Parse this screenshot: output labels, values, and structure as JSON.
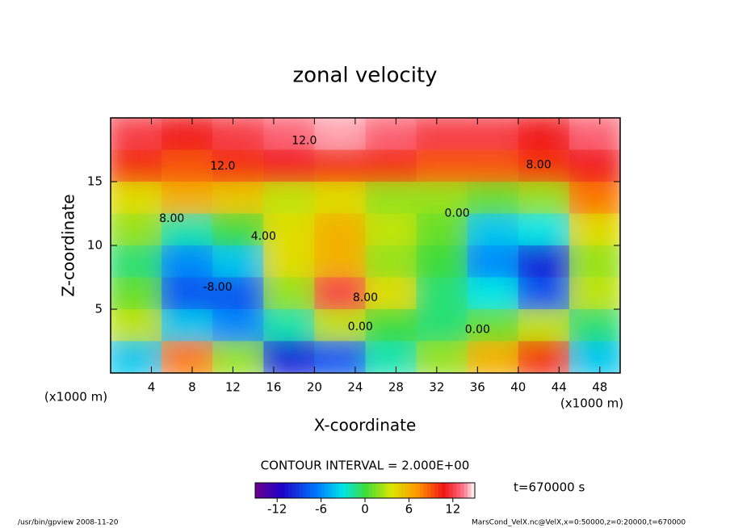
{
  "chart_data": {
    "type": "heatmap",
    "title": "zonal velocity",
    "x_label": "X-coordinate",
    "y_label": "Z-coordinate",
    "x_unit": "(x1000 m)",
    "y_unit": "(x1000 m)",
    "xlim": [
      0,
      50
    ],
    "ylim": [
      0,
      20
    ],
    "xticks": [
      4,
      8,
      12,
      16,
      20,
      24,
      28,
      32,
      36,
      40,
      44,
      48
    ],
    "yticks": [
      5,
      10,
      15
    ],
    "x": [
      2.5,
      7.5,
      12.5,
      17.5,
      22.5,
      27.5,
      32.5,
      37.5,
      42.5,
      47.5
    ],
    "y": [
      1.25,
      3.75,
      6.25,
      8.75,
      11.25,
      13.75,
      16.25,
      18.75
    ],
    "z": [
      [
        -4,
        8,
        2,
        -10,
        -8,
        -2,
        2,
        6,
        10,
        -4
      ],
      [
        3,
        -4,
        -6,
        -2,
        3,
        0,
        -1,
        1,
        3,
        -1
      ],
      [
        1,
        -8,
        -8,
        2,
        12,
        4,
        -1,
        -3,
        -8,
        3
      ],
      [
        -1,
        -6,
        -4,
        4,
        6,
        2,
        0,
        -6,
        -10,
        2
      ],
      [
        2,
        -2,
        0,
        4,
        6,
        3,
        1,
        -4,
        -3,
        4
      ],
      [
        4,
        6,
        5,
        3,
        4,
        2,
        2,
        1,
        2,
        8
      ],
      [
        10,
        9,
        10,
        11,
        10,
        10,
        9,
        9,
        10,
        11
      ],
      [
        12,
        11,
        12,
        13,
        14,
        13,
        12,
        12,
        11,
        13
      ]
    ],
    "annotations": [
      {
        "text": "12.0",
        "x": 19,
        "y": 18.2
      },
      {
        "text": "12.0",
        "x": 11,
        "y": 16.2
      },
      {
        "text": "8.00",
        "x": 42,
        "y": 16.3
      },
      {
        "text": "8.00",
        "x": 6,
        "y": 12.1
      },
      {
        "text": "4.00",
        "x": 15,
        "y": 10.7
      },
      {
        "text": "-8.00",
        "x": 10.5,
        "y": 6.7
      },
      {
        "text": "0.00",
        "x": 24.5,
        "y": 3.6
      },
      {
        "text": "0.00",
        "x": 36,
        "y": 3.4
      },
      {
        "text": "0.00",
        "x": 34,
        "y": 12.5
      },
      {
        "text": "8.00",
        "x": 25,
        "y": 5.9
      }
    ],
    "colorbar": {
      "clim": [
        -15,
        15
      ],
      "ticks": [
        -12,
        -6,
        0,
        6,
        12
      ]
    },
    "contour_note": "CONTOUR INTERVAL = 2.000E+00",
    "time_label": "t=670000 s",
    "footer_left": "/usr/bin/gpview  2008-11-20",
    "footer_right": "MarsCond_VelX.nc@VelX,x=0:50000,z=0:20000,t=670000"
  }
}
